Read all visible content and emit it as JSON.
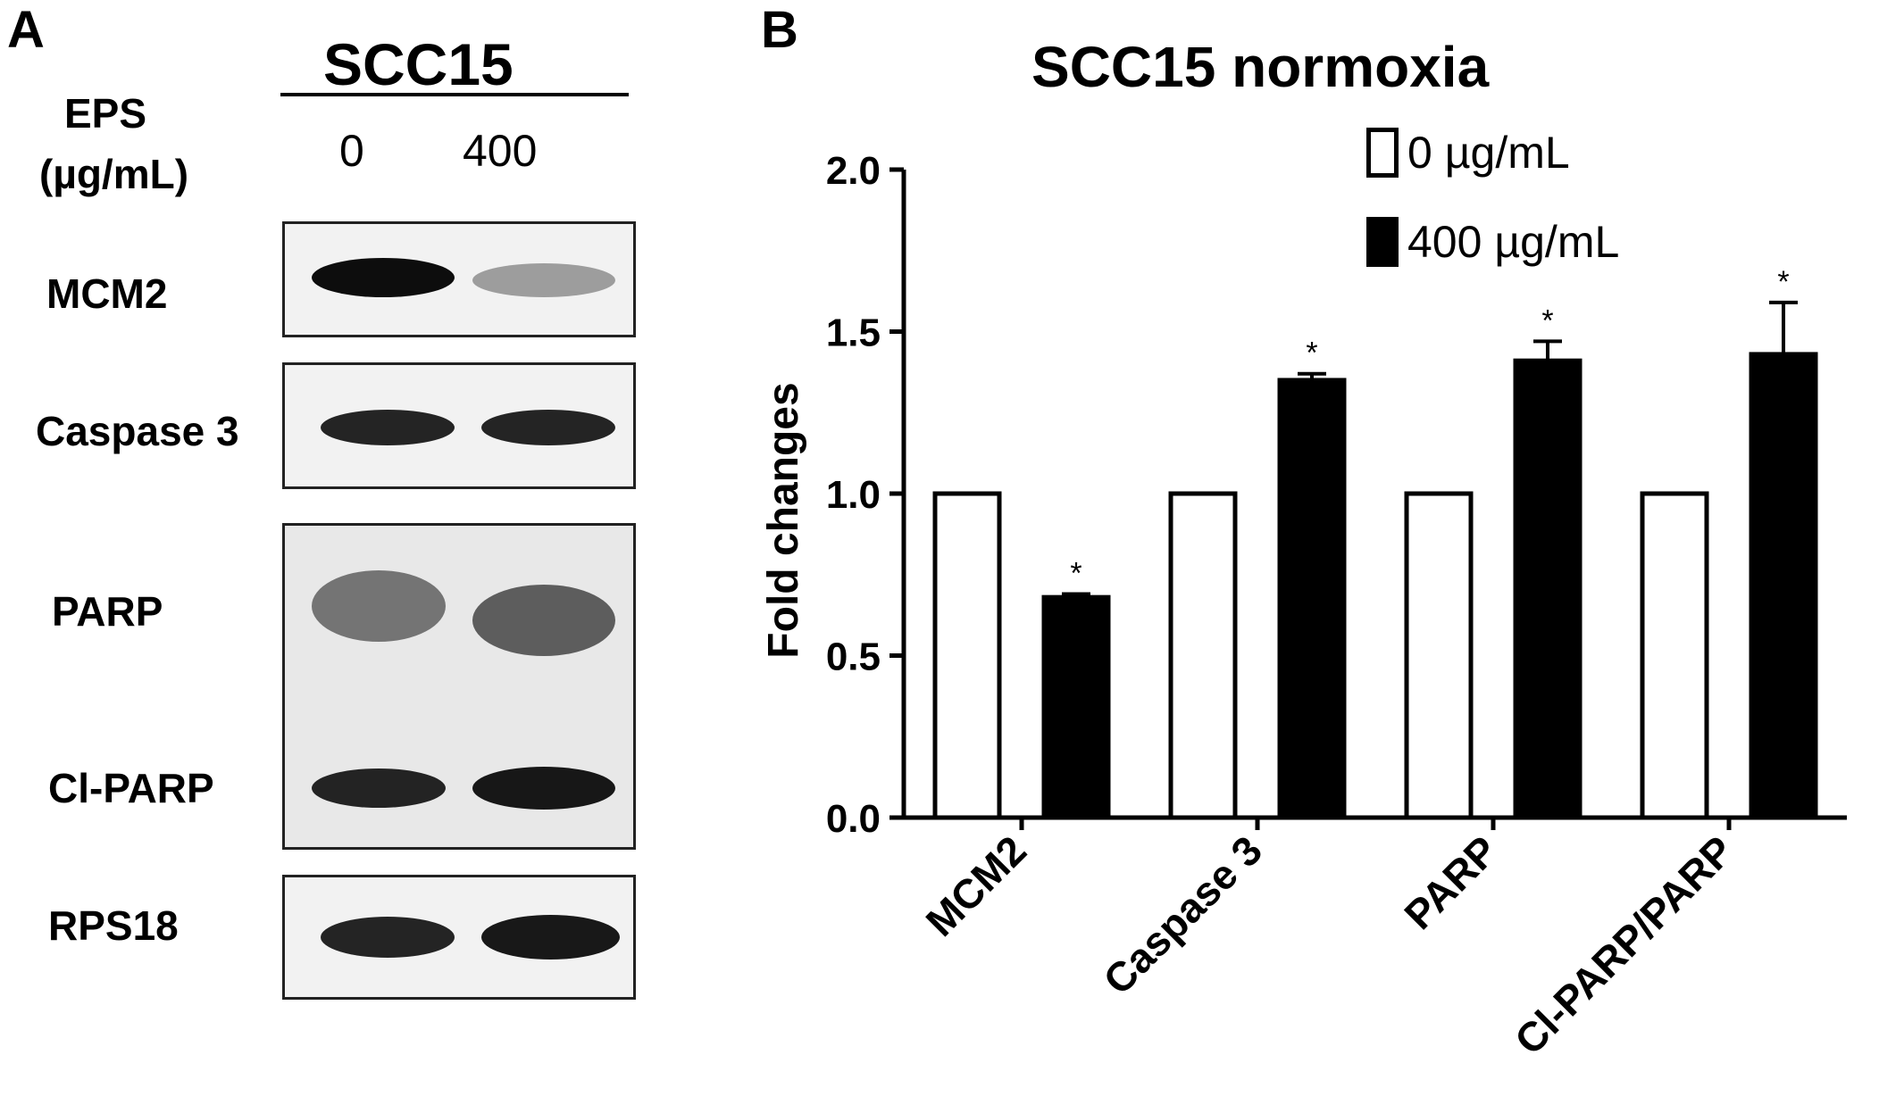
{
  "panel_a": {
    "letter": "A",
    "cell_line": "SCC15",
    "treatment_label_line1": "EPS",
    "treatment_label_line2": "(µg/mL)",
    "lanes": [
      "0",
      "400"
    ],
    "blots": [
      {
        "name": "MCM2",
        "intensities": [
          0.95,
          0.35
        ]
      },
      {
        "name": "Caspase 3",
        "intensities": [
          0.85,
          0.85
        ]
      },
      {
        "name": "PARP",
        "intensities": [
          0.5,
          0.6
        ]
      },
      {
        "name": "Cl-PARP",
        "intensities": [
          0.85,
          0.9
        ]
      },
      {
        "name": "RPS18",
        "intensities": [
          0.85,
          0.9
        ]
      }
    ]
  },
  "panel_b": {
    "letter": "B",
    "legend": [
      {
        "label": "0 µg/mL",
        "color": "#ffffff"
      },
      {
        "label": "400 µg/mL",
        "color": "#000000"
      }
    ]
  },
  "chart_data": {
    "type": "bar",
    "title": "SCC15 normoxia",
    "xlabel": "",
    "ylabel": "Fold changes",
    "ylim": [
      0.0,
      2.0
    ],
    "yticks": [
      "0.0",
      "0.5",
      "1.0",
      "1.5",
      "2.0"
    ],
    "categories": [
      "MCM2",
      "Caspase 3",
      "PARP",
      "Cl-PARP/PARP"
    ],
    "series": [
      {
        "name": "0 µg/mL",
        "color": "#ffffff",
        "values": [
          1.0,
          1.0,
          1.0,
          1.0
        ],
        "errors": [
          0,
          0,
          0,
          0
        ]
      },
      {
        "name": "400 µg/mL",
        "color": "#000000",
        "values": [
          0.68,
          1.35,
          1.41,
          1.43
        ],
        "errors": [
          0.01,
          0.02,
          0.06,
          0.16
        ]
      }
    ],
    "significance": [
      "*",
      "*",
      "*",
      "*"
    ],
    "legend_position": "top-right",
    "grid": false
  }
}
